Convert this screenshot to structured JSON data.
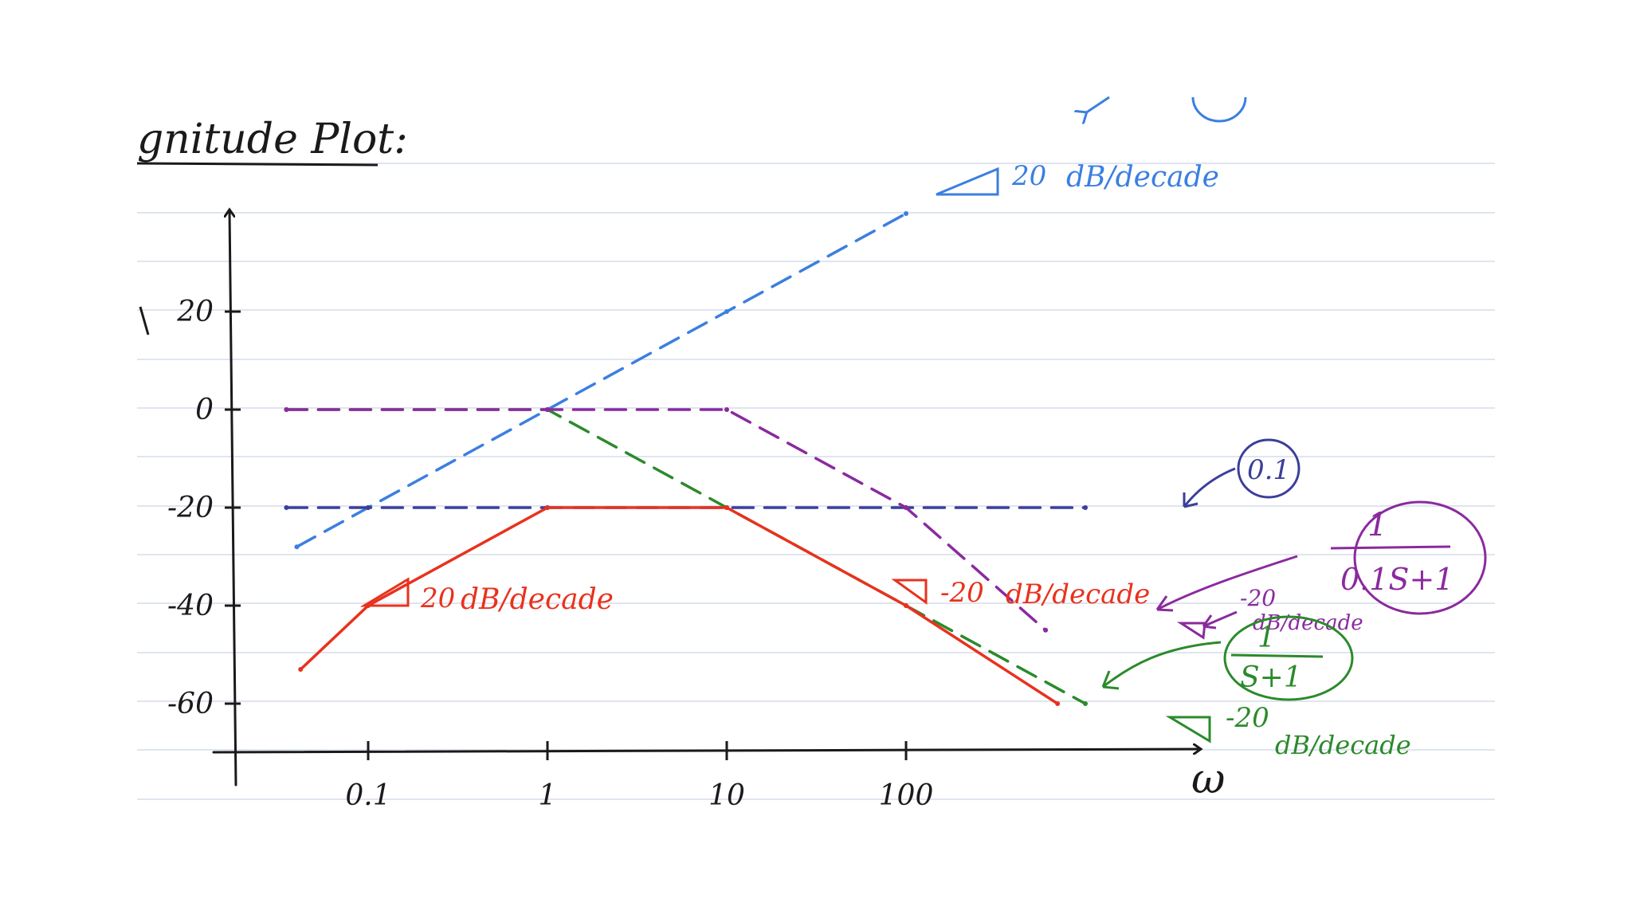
{
  "page": {
    "title": "gnitude Plot:"
  },
  "chart_data": {
    "type": "line",
    "title": "gnitude Plot:",
    "xlabel": "ω",
    "ylabel": "",
    "xscale": "log",
    "xlim": [
      0.035,
      1300
    ],
    "ylim": [
      -70,
      40
    ],
    "x_ticks": [
      {
        "value": 0.1,
        "label": "0.1"
      },
      {
        "value": 1,
        "label": "1"
      },
      {
        "value": 10,
        "label": "10"
      },
      {
        "value": 100,
        "label": "100"
      }
    ],
    "y_ticks": [
      {
        "value": 20,
        "label": "20"
      },
      {
        "value": 0,
        "label": "0"
      },
      {
        "value": -20,
        "label": "-20"
      },
      {
        "value": -40,
        "label": "-40"
      },
      {
        "value": -60,
        "label": "-60"
      }
    ],
    "series": [
      {
        "color": "#3b7fe0",
        "style": "dashed",
        "x": [
          0.04,
          0.1,
          1,
          10,
          100
        ],
        "y": [
          -28,
          -20,
          0,
          20,
          40
        ]
      },
      {
        "color": "#3a3f9a",
        "style": "dashed",
        "x": [
          0.035,
          0.1,
          1,
          10,
          100,
          1000
        ],
        "y": [
          -20,
          -20,
          -20,
          -20,
          -20,
          -20
        ]
      },
      {
        "color": "#2b8a2b",
        "style": "dashed",
        "x": [
          0.035,
          1,
          10,
          100,
          1000
        ],
        "y": [
          0,
          0,
          -20,
          -40,
          -60
        ]
      },
      {
        "color": "#8a2a9e",
        "style": "dashed",
        "x": [
          0.035,
          1,
          10,
          100,
          600
        ],
        "y": [
          0,
          0,
          0,
          -20,
          -45
        ]
      },
      {
        "color": "#e8321e",
        "style": "solid",
        "x": [
          0.042,
          0.1,
          1,
          10,
          100,
          700
        ],
        "y": [
          -53,
          -40,
          -20,
          -20,
          -40,
          -60
        ]
      }
    ],
    "annotations": [
      {
        "text": "20",
        "fraction": "dB/decade",
        "color": "#3b7fe0"
      },
      {
        "text": "20",
        "fraction": "dB/decade",
        "color": "#e8321e"
      },
      {
        "text": "-20",
        "fraction": "dB/decade",
        "color": "#e8321e"
      },
      {
        "text": "-20",
        "fraction": "dB/decade",
        "color": "#8a2a9e"
      },
      {
        "text": "-20",
        "fraction": "dB/decade",
        "color": "#2b8a2b"
      },
      {
        "text": "0.1",
        "color": "#3a3f9a"
      },
      {
        "text": "1",
        "fraction": "0.1S+1",
        "color": "#8a2a9e"
      },
      {
        "text": "1",
        "fraction": "S+1",
        "color": "#2b8a2b"
      }
    ]
  }
}
